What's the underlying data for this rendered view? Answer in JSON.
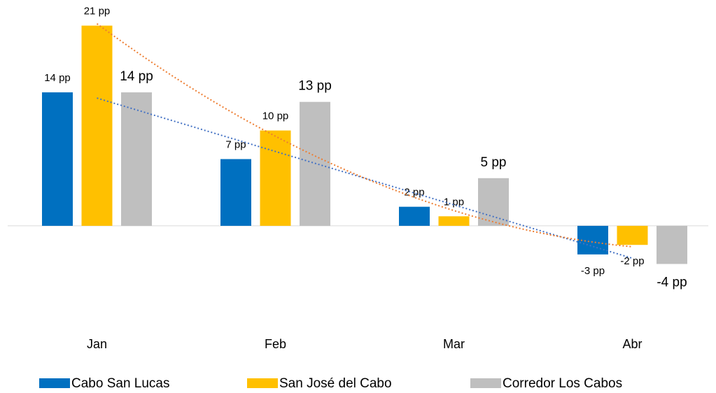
{
  "chart_data": {
    "type": "bar",
    "categories": [
      "Jan",
      "Feb",
      "Mar",
      "Abr"
    ],
    "series": [
      {
        "name": "Cabo San Lucas",
        "color": "#0070c0",
        "values": [
          14,
          7,
          2,
          -3
        ],
        "value_labels": [
          "14 pp",
          "7 pp",
          "2 pp",
          "-3 pp"
        ],
        "trendline": "linear",
        "trendline_color": "#4472c4"
      },
      {
        "name": "San José del Cabo",
        "color": "#ffc000",
        "values": [
          21,
          10,
          1,
          -2
        ],
        "value_labels": [
          "21 pp",
          "10 pp",
          "1 pp",
          "-2 pp"
        ],
        "trendline": "polynomial",
        "trendline_color": "#ed7d31"
      },
      {
        "name": "Corredor Los Cabos",
        "color": "#bfbfbf",
        "values": [
          14,
          13,
          5,
          -4
        ],
        "value_labels": [
          "14 pp",
          "13 pp",
          "5 pp",
          "-4 pp"
        ]
      }
    ],
    "ylim": [
      -8,
      22
    ],
    "legend": "bottom"
  }
}
